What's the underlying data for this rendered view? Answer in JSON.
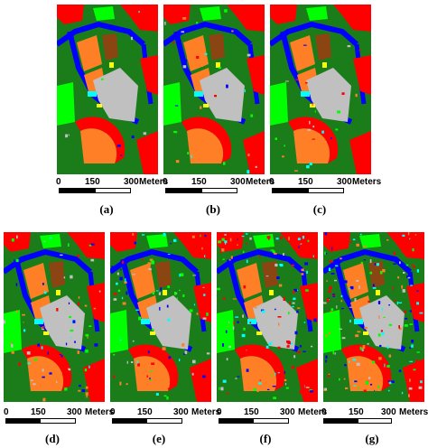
{
  "scale": {
    "tick_0": "0",
    "tick_150": "150",
    "tick_300": "300",
    "unit": "Meters"
  },
  "panels": [
    {
      "label": "(a)"
    },
    {
      "label": "(b)"
    },
    {
      "label": "(c)"
    },
    {
      "label": "(d)"
    },
    {
      "label": "(e)"
    },
    {
      "label": "(f)"
    },
    {
      "label": "(g)"
    }
  ],
  "colors": {
    "background_green": "#1a7d1a",
    "red": "#ff0000",
    "blue": "#0000ff",
    "orange": "#ff7f27",
    "gray": "#c0c0c0",
    "cyan": "#00ffff",
    "yellow": "#ffff00",
    "light_green": "#00ff00",
    "brown": "#8b4513",
    "olive": "#6b8e23"
  }
}
